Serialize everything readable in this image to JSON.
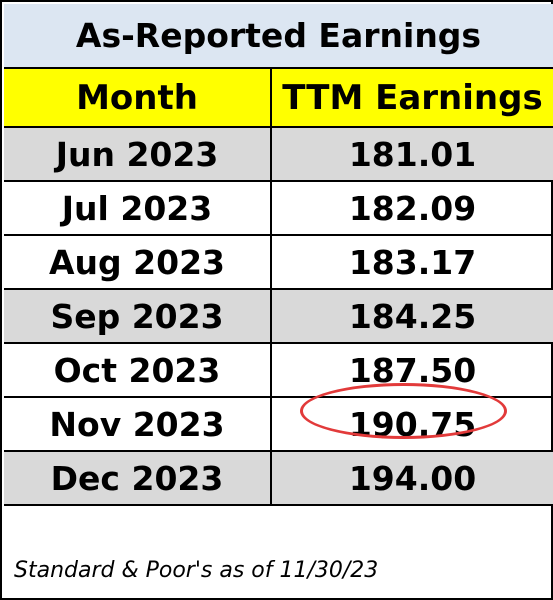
{
  "title": "As-Reported Earnings",
  "headers": {
    "month": "Month",
    "earnings": "TTM Earnings"
  },
  "rows": [
    {
      "month": "Jun 2023",
      "value": "181.01",
      "shaded": true
    },
    {
      "month": "Jul 2023",
      "value": "182.09",
      "shaded": false
    },
    {
      "month": "Aug 2023",
      "value": "183.17",
      "shaded": false
    },
    {
      "month": "Sep 2023",
      "value": "184.25",
      "shaded": true
    },
    {
      "month": "Oct 2023",
      "value": "187.50",
      "shaded": false
    },
    {
      "month": "Nov 2023",
      "value": "190.75",
      "shaded": false,
      "highlighted": true
    },
    {
      "month": "Dec 2023",
      "value": "194.00",
      "shaded": true
    }
  ],
  "footer": "Standard & Poor's as of 11/30/23",
  "colors": {
    "title_bg": "#dce6f2",
    "header_bg": "#ffff00",
    "shaded_row_bg": "#d9d9d9",
    "highlight_circle": "#e23a3a"
  }
}
